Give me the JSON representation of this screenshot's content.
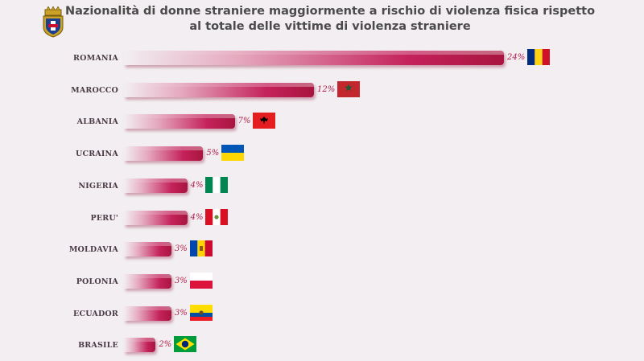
{
  "title": {
    "line1": "Nazionalità di donne straniere maggiormente a rischio di violenza fisica rispetto",
    "line2": "al totale delle vittime di violenza straniere"
  },
  "logo_icon": "polizia-crest-icon",
  "chart_data": {
    "type": "bar",
    "orientation": "horizontal",
    "title": "Nazionalità di donne straniere maggiormente a rischio di violenza fisica rispetto al totale delle vittime di violenza straniere",
    "categories": [
      "ROMANIA",
      "MAROCCO",
      "ALBANIA",
      "UCRAINA",
      "NIGERIA",
      "PERU'",
      "MOLDAVIA",
      "POLONIA",
      "ECUADOR",
      "BRASILE"
    ],
    "values": [
      24,
      12,
      7,
      5,
      4,
      4,
      3,
      3,
      3,
      2
    ],
    "value_labels": [
      "24%",
      "12%",
      "7%",
      "5%",
      "4%",
      "4%",
      "3%",
      "3%",
      "3%",
      "2%"
    ],
    "flag_icons": [
      "romania-flag-icon",
      "morocco-flag-icon",
      "albania-flag-icon",
      "ukraine-flag-icon",
      "nigeria-flag-icon",
      "peru-flag-icon",
      "moldova-flag-icon",
      "poland-flag-icon",
      "ecuador-flag-icon",
      "brazil-flag-icon"
    ],
    "bar_color": "#c4225b",
    "label_color": "#b0204b",
    "xlim": [
      0,
      24
    ]
  }
}
